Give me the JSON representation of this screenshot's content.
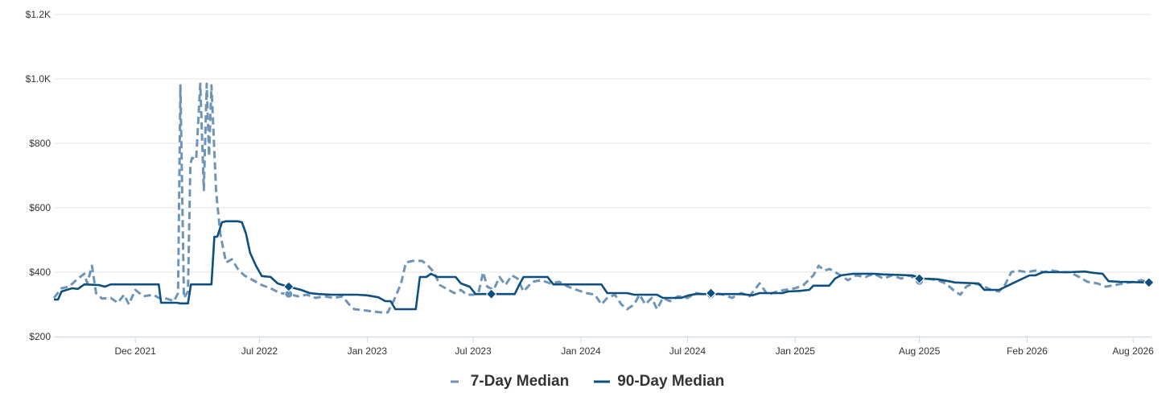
{
  "chart_data": {
    "type": "line",
    "x_type": "date",
    "xlim": [
      "2021-07-15",
      "2026-08-31"
    ],
    "ylim": [
      200,
      1200
    ],
    "grid": true,
    "legend_position": "bottom-center",
    "y_ticks": [
      {
        "value": 200,
        "label": "$200"
      },
      {
        "value": 400,
        "label": "$400"
      },
      {
        "value": 600,
        "label": "$600"
      },
      {
        "value": 800,
        "label": "$800"
      },
      {
        "value": 1000,
        "label": "$1.0K"
      },
      {
        "value": 1200,
        "label": "$1.2K"
      }
    ],
    "x_ticks": [
      {
        "date": "2021-12-01",
        "label": "Dec 2021"
      },
      {
        "date": "2022-07-01",
        "label": "Jul 2022"
      },
      {
        "date": "2023-01-01",
        "label": "Jan 2023"
      },
      {
        "date": "2023-07-01",
        "label": "Jul 2023"
      },
      {
        "date": "2024-01-01",
        "label": "Jan 2024"
      },
      {
        "date": "2024-07-01",
        "label": "Jul 2024"
      },
      {
        "date": "2025-01-01",
        "label": "Jan 2025"
      },
      {
        "date": "2025-08-01",
        "label": "Aug 2025"
      },
      {
        "date": "2026-02-01",
        "label": "Feb 2026"
      },
      {
        "date": "2026-08-01",
        "label": "Aug 2026"
      }
    ],
    "series": [
      {
        "name": "7-Day Median",
        "color": "#6e95b8",
        "style": "dashed",
        "markers": [
          {
            "date": "2022-08-20",
            "value": 332,
            "marker": "circle"
          },
          {
            "date": "2024-08-10",
            "value": 330,
            "marker": "circle"
          },
          {
            "date": "2025-08-01",
            "value": 372,
            "marker": "circle"
          }
        ],
        "points": [
          [
            "2021-07-15",
            320
          ],
          [
            "2021-07-28",
            350
          ],
          [
            "2021-08-10",
            355
          ],
          [
            "2021-08-25",
            380
          ],
          [
            "2021-09-05",
            395
          ],
          [
            "2021-09-10",
            365
          ],
          [
            "2021-09-18",
            420
          ],
          [
            "2021-09-25",
            335
          ],
          [
            "2021-10-05",
            318
          ],
          [
            "2021-10-20",
            320
          ],
          [
            "2021-11-01",
            305
          ],
          [
            "2021-11-12",
            330
          ],
          [
            "2021-11-20",
            300
          ],
          [
            "2021-12-01",
            345
          ],
          [
            "2021-12-15",
            325
          ],
          [
            "2022-01-01",
            330
          ],
          [
            "2022-01-10",
            320
          ],
          [
            "2022-01-20",
            320
          ],
          [
            "2022-01-28",
            315
          ],
          [
            "2022-02-05",
            310
          ],
          [
            "2022-02-12",
            335
          ],
          [
            "2022-02-16",
            980
          ],
          [
            "2022-02-22",
            320
          ],
          [
            "2022-03-01",
            340
          ],
          [
            "2022-03-05",
            735
          ],
          [
            "2022-03-08",
            755
          ],
          [
            "2022-03-15",
            750
          ],
          [
            "2022-03-22",
            985
          ],
          [
            "2022-03-28",
            655
          ],
          [
            "2022-04-02",
            985
          ],
          [
            "2022-04-06",
            760
          ],
          [
            "2022-04-10",
            980
          ],
          [
            "2022-04-18",
            650
          ],
          [
            "2022-04-25",
            520
          ],
          [
            "2022-05-05",
            430
          ],
          [
            "2022-05-15",
            440
          ],
          [
            "2022-05-25",
            410
          ],
          [
            "2022-06-05",
            390
          ],
          [
            "2022-06-20",
            375
          ],
          [
            "2022-07-05",
            360
          ],
          [
            "2022-07-20",
            350
          ],
          [
            "2022-08-05",
            335
          ],
          [
            "2022-08-20",
            332
          ],
          [
            "2022-09-05",
            325
          ],
          [
            "2022-09-20",
            330
          ],
          [
            "2022-10-05",
            320
          ],
          [
            "2022-10-20",
            325
          ],
          [
            "2022-11-05",
            320
          ],
          [
            "2022-11-20",
            325
          ],
          [
            "2022-12-01",
            300
          ],
          [
            "2022-12-10",
            285
          ],
          [
            "2022-12-25",
            282
          ],
          [
            "2023-01-10",
            278
          ],
          [
            "2023-01-25",
            275
          ],
          [
            "2023-02-05",
            275
          ],
          [
            "2023-02-15",
            310
          ],
          [
            "2023-02-28",
            365
          ],
          [
            "2023-03-08",
            430
          ],
          [
            "2023-03-20",
            435
          ],
          [
            "2023-04-05",
            435
          ],
          [
            "2023-04-15",
            420
          ],
          [
            "2023-04-25",
            400
          ],
          [
            "2023-05-05",
            360
          ],
          [
            "2023-05-15",
            350
          ],
          [
            "2023-05-30",
            335
          ],
          [
            "2023-06-10",
            345
          ],
          [
            "2023-06-20",
            330
          ],
          [
            "2023-07-01",
            330
          ],
          [
            "2023-07-10",
            335
          ],
          [
            "2023-07-18",
            400
          ],
          [
            "2023-07-25",
            355
          ],
          [
            "2023-08-05",
            345
          ],
          [
            "2023-08-15",
            385
          ],
          [
            "2023-08-25",
            360
          ],
          [
            "2023-09-05",
            390
          ],
          [
            "2023-09-15",
            380
          ],
          [
            "2023-09-25",
            340
          ],
          [
            "2023-10-10",
            370
          ],
          [
            "2023-10-25",
            375
          ],
          [
            "2023-11-10",
            365
          ],
          [
            "2023-11-25",
            370
          ],
          [
            "2023-12-10",
            355
          ],
          [
            "2023-12-25",
            345
          ],
          [
            "2024-01-10",
            335
          ],
          [
            "2024-01-25",
            330
          ],
          [
            "2024-02-05",
            300
          ],
          [
            "2024-02-15",
            320
          ],
          [
            "2024-02-28",
            330
          ],
          [
            "2024-03-10",
            300
          ],
          [
            "2024-03-20",
            285
          ],
          [
            "2024-04-01",
            300
          ],
          [
            "2024-04-10",
            330
          ],
          [
            "2024-04-20",
            300
          ],
          [
            "2024-05-01",
            320
          ],
          [
            "2024-05-10",
            285
          ],
          [
            "2024-05-20",
            320
          ],
          [
            "2024-06-01",
            310
          ],
          [
            "2024-06-15",
            325
          ],
          [
            "2024-07-01",
            320
          ],
          [
            "2024-07-15",
            335
          ],
          [
            "2024-08-01",
            330
          ],
          [
            "2024-08-15",
            335
          ],
          [
            "2024-09-01",
            330
          ],
          [
            "2024-09-15",
            320
          ],
          [
            "2024-10-01",
            335
          ],
          [
            "2024-10-15",
            325
          ],
          [
            "2024-11-01",
            365
          ],
          [
            "2024-11-15",
            330
          ],
          [
            "2024-12-01",
            340
          ],
          [
            "2024-12-15",
            345
          ],
          [
            "2025-01-01",
            350
          ],
          [
            "2025-01-15",
            360
          ],
          [
            "2025-02-01",
            390
          ],
          [
            "2025-02-10",
            420
          ],
          [
            "2025-02-20",
            405
          ],
          [
            "2025-03-01",
            410
          ],
          [
            "2025-03-15",
            395
          ],
          [
            "2025-04-01",
            375
          ],
          [
            "2025-04-15",
            390
          ],
          [
            "2025-05-01",
            385
          ],
          [
            "2025-05-15",
            395
          ],
          [
            "2025-06-01",
            380
          ],
          [
            "2025-06-15",
            390
          ],
          [
            "2025-07-01",
            380
          ],
          [
            "2025-07-15",
            390
          ],
          [
            "2025-08-01",
            372
          ],
          [
            "2025-08-15",
            380
          ],
          [
            "2025-09-01",
            375
          ],
          [
            "2025-09-15",
            365
          ],
          [
            "2025-10-01",
            340
          ],
          [
            "2025-10-10",
            330
          ],
          [
            "2025-10-20",
            355
          ],
          [
            "2025-11-01",
            365
          ],
          [
            "2025-11-15",
            360
          ],
          [
            "2025-12-01",
            345
          ],
          [
            "2025-12-15",
            340
          ],
          [
            "2025-12-25",
            360
          ],
          [
            "2026-01-05",
            400
          ],
          [
            "2026-01-15",
            405
          ],
          [
            "2026-02-01",
            400
          ],
          [
            "2026-02-15",
            405
          ],
          [
            "2026-03-01",
            400
          ],
          [
            "2026-03-15",
            405
          ],
          [
            "2026-04-01",
            400
          ],
          [
            "2026-04-15",
            400
          ],
          [
            "2026-05-01",
            385
          ],
          [
            "2026-05-15",
            370
          ],
          [
            "2026-06-01",
            365
          ],
          [
            "2026-06-15",
            355
          ],
          [
            "2026-07-01",
            360
          ],
          [
            "2026-07-15",
            365
          ],
          [
            "2026-08-01",
            370
          ],
          [
            "2026-08-15",
            375
          ],
          [
            "2026-08-28",
            368
          ]
        ]
      },
      {
        "name": "90-Day Median",
        "color": "#0d4f7f",
        "style": "solid",
        "markers": [
          {
            "date": "2022-08-20",
            "value": 355,
            "marker": "diamond"
          },
          {
            "date": "2023-08-01",
            "value": 332,
            "marker": "diamond"
          },
          {
            "date": "2024-08-10",
            "value": 335,
            "marker": "diamond"
          },
          {
            "date": "2025-08-01",
            "value": 380,
            "marker": "diamond"
          },
          {
            "date": "2026-08-28",
            "value": 368,
            "marker": "diamond"
          }
        ],
        "points": [
          [
            "2021-07-15",
            315
          ],
          [
            "2021-07-22",
            315
          ],
          [
            "2021-07-28",
            340
          ],
          [
            "2021-08-15",
            350
          ],
          [
            "2021-08-25",
            348
          ],
          [
            "2021-09-05",
            362
          ],
          [
            "2021-09-30",
            360
          ],
          [
            "2021-10-10",
            355
          ],
          [
            "2021-10-20",
            362
          ],
          [
            "2022-01-10",
            362
          ],
          [
            "2022-01-14",
            305
          ],
          [
            "2022-02-10",
            305
          ],
          [
            "2022-02-16",
            303
          ],
          [
            "2022-03-01",
            303
          ],
          [
            "2022-03-06",
            362
          ],
          [
            "2022-04-10",
            362
          ],
          [
            "2022-04-15",
            510
          ],
          [
            "2022-04-20",
            510
          ],
          [
            "2022-04-28",
            555
          ],
          [
            "2022-05-05",
            558
          ],
          [
            "2022-05-25",
            558
          ],
          [
            "2022-06-01",
            555
          ],
          [
            "2022-06-08",
            520
          ],
          [
            "2022-06-15",
            460
          ],
          [
            "2022-06-25",
            420
          ],
          [
            "2022-07-05",
            388
          ],
          [
            "2022-07-20",
            385
          ],
          [
            "2022-08-01",
            365
          ],
          [
            "2022-08-10",
            360
          ],
          [
            "2022-08-20",
            355
          ],
          [
            "2022-09-10",
            345
          ],
          [
            "2022-09-25",
            335
          ],
          [
            "2022-10-10",
            332
          ],
          [
            "2022-11-01",
            330
          ],
          [
            "2022-12-15",
            330
          ],
          [
            "2023-01-01",
            328
          ],
          [
            "2023-01-20",
            322
          ],
          [
            "2023-02-01",
            310
          ],
          [
            "2023-02-10",
            310
          ],
          [
            "2023-02-18",
            285
          ],
          [
            "2023-03-25",
            285
          ],
          [
            "2023-04-01",
            385
          ],
          [
            "2023-04-12",
            385
          ],
          [
            "2023-04-20",
            395
          ],
          [
            "2023-05-01",
            385
          ],
          [
            "2023-06-01",
            385
          ],
          [
            "2023-06-10",
            365
          ],
          [
            "2023-06-25",
            355
          ],
          [
            "2023-07-05",
            332
          ],
          [
            "2023-09-10",
            332
          ],
          [
            "2023-09-18",
            362
          ],
          [
            "2023-09-25",
            385
          ],
          [
            "2023-11-05",
            385
          ],
          [
            "2023-11-15",
            362
          ],
          [
            "2024-02-05",
            362
          ],
          [
            "2024-02-15",
            335
          ],
          [
            "2024-03-20",
            335
          ],
          [
            "2024-04-01",
            330
          ],
          [
            "2024-05-10",
            330
          ],
          [
            "2024-05-20",
            320
          ],
          [
            "2024-06-20",
            320
          ],
          [
            "2024-07-01",
            327
          ],
          [
            "2024-07-15",
            332
          ],
          [
            "2024-10-01",
            332
          ],
          [
            "2024-10-20",
            328
          ],
          [
            "2024-11-01",
            335
          ],
          [
            "2024-12-10",
            335
          ],
          [
            "2024-12-20",
            340
          ],
          [
            "2025-01-10",
            342
          ],
          [
            "2025-01-25",
            345
          ],
          [
            "2025-02-01",
            358
          ],
          [
            "2025-02-28",
            358
          ],
          [
            "2025-03-10",
            380
          ],
          [
            "2025-03-20",
            390
          ],
          [
            "2025-04-10",
            395
          ],
          [
            "2025-05-15",
            395
          ],
          [
            "2025-06-01",
            393
          ],
          [
            "2025-07-20",
            390
          ],
          [
            "2025-08-05",
            380
          ],
          [
            "2025-09-01",
            378
          ],
          [
            "2025-09-20",
            372
          ],
          [
            "2025-10-01",
            368
          ],
          [
            "2025-11-10",
            365
          ],
          [
            "2025-11-20",
            345
          ],
          [
            "2025-12-15",
            345
          ],
          [
            "2025-12-30",
            358
          ],
          [
            "2026-01-15",
            372
          ],
          [
            "2026-02-05",
            390
          ],
          [
            "2026-02-15",
            390
          ],
          [
            "2026-02-28",
            400
          ],
          [
            "2026-04-15",
            400
          ],
          [
            "2026-05-10",
            402
          ],
          [
            "2026-05-25",
            398
          ],
          [
            "2026-06-10",
            395
          ],
          [
            "2026-06-20",
            372
          ],
          [
            "2026-07-10",
            370
          ],
          [
            "2026-08-28",
            368
          ]
        ]
      }
    ]
  }
}
